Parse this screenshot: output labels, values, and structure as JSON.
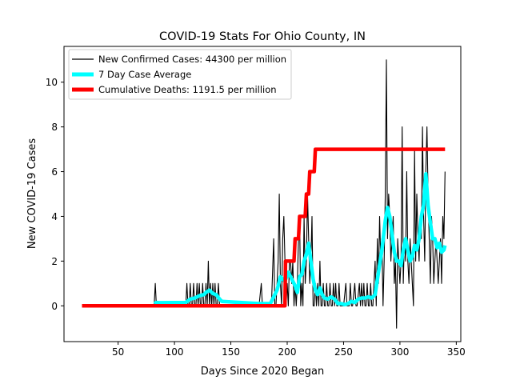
{
  "chart_data": {
    "type": "line",
    "title": "COVID-19 Stats For Ohio County, IN",
    "xlabel": "Days Since 2020 Began",
    "ylabel": "New COVID-19 Cases",
    "xlim": [
      2,
      354
    ],
    "ylim": [
      -1.6,
      11.6
    ],
    "xticks": [
      50,
      100,
      150,
      200,
      250,
      300,
      350
    ],
    "yticks": [
      0,
      2,
      4,
      6,
      8,
      10
    ],
    "grid": false,
    "legend_position": "top-left",
    "series": [
      {
        "name": "New Confirmed Cases: 44300 per million",
        "color": "#000000",
        "kind": "thin",
        "points": [
          [
            82,
            0
          ],
          [
            83,
            1
          ],
          [
            84,
            0
          ],
          [
            86,
            0
          ],
          [
            88,
            0
          ],
          [
            90,
            0
          ],
          [
            110,
            0
          ],
          [
            111,
            1
          ],
          [
            112,
            0
          ],
          [
            113,
            0
          ],
          [
            114,
            1
          ],
          [
            115,
            0
          ],
          [
            116,
            0
          ],
          [
            117,
            1
          ],
          [
            118,
            0
          ],
          [
            119,
            0
          ],
          [
            120,
            1
          ],
          [
            121,
            0
          ],
          [
            122,
            1
          ],
          [
            123,
            0
          ],
          [
            124,
            0
          ],
          [
            125,
            1
          ],
          [
            126,
            0
          ],
          [
            127,
            0
          ],
          [
            128,
            1
          ],
          [
            129,
            0
          ],
          [
            130,
            2
          ],
          [
            131,
            0
          ],
          [
            132,
            1
          ],
          [
            133,
            0
          ],
          [
            134,
            1
          ],
          [
            135,
            0
          ],
          [
            136,
            1
          ],
          [
            137,
            0
          ],
          [
            138,
            0
          ],
          [
            139,
            1
          ],
          [
            140,
            0
          ],
          [
            141,
            0
          ],
          [
            142,
            0
          ],
          [
            144,
            0
          ],
          [
            175,
            0
          ],
          [
            177,
            1
          ],
          [
            178,
            0
          ],
          [
            180,
            0
          ],
          [
            183,
            0
          ],
          [
            186,
            0
          ],
          [
            188,
            3
          ],
          [
            189,
            0
          ],
          [
            190,
            0
          ],
          [
            191,
            1
          ],
          [
            192,
            2
          ],
          [
            193,
            5
          ],
          [
            194,
            1
          ],
          [
            195,
            0
          ],
          [
            196,
            3
          ],
          [
            197,
            4
          ],
          [
            198,
            2
          ],
          [
            199,
            0
          ],
          [
            200,
            1
          ],
          [
            201,
            0
          ],
          [
            202,
            2
          ],
          [
            203,
            2
          ],
          [
            204,
            1
          ],
          [
            205,
            2
          ],
          [
            206,
            0
          ],
          [
            207,
            1
          ],
          [
            208,
            0
          ],
          [
            209,
            1
          ],
          [
            210,
            3
          ],
          [
            211,
            4
          ],
          [
            212,
            0
          ],
          [
            213,
            1
          ],
          [
            214,
            0
          ],
          [
            215,
            4
          ],
          [
            216,
            1
          ],
          [
            217,
            2
          ],
          [
            218,
            5
          ],
          [
            219,
            3
          ],
          [
            220,
            1
          ],
          [
            221,
            2
          ],
          [
            222,
            4
          ],
          [
            223,
            0
          ],
          [
            224,
            0
          ],
          [
            225,
            1
          ],
          [
            226,
            0
          ],
          [
            227,
            1
          ],
          [
            228,
            0
          ],
          [
            229,
            2
          ],
          [
            230,
            0
          ],
          [
            231,
            0
          ],
          [
            232,
            1
          ],
          [
            233,
            0
          ],
          [
            234,
            0
          ],
          [
            235,
            1
          ],
          [
            236,
            0
          ],
          [
            237,
            0
          ],
          [
            238,
            1
          ],
          [
            239,
            0
          ],
          [
            240,
            0
          ],
          [
            241,
            1
          ],
          [
            242,
            0
          ],
          [
            243,
            1
          ],
          [
            244,
            0
          ],
          [
            245,
            0
          ],
          [
            246,
            1
          ],
          [
            247,
            0
          ],
          [
            248,
            0
          ],
          [
            249,
            0
          ],
          [
            250,
            0
          ],
          [
            252,
            1
          ],
          [
            253,
            0
          ],
          [
            254,
            0
          ],
          [
            255,
            0
          ],
          [
            256,
            1
          ],
          [
            257,
            0
          ],
          [
            258,
            0
          ],
          [
            260,
            1
          ],
          [
            261,
            0
          ],
          [
            262,
            0
          ],
          [
            264,
            1
          ],
          [
            265,
            0
          ],
          [
            266,
            1
          ],
          [
            267,
            0
          ],
          [
            268,
            1
          ],
          [
            269,
            0
          ],
          [
            270,
            0
          ],
          [
            271,
            1
          ],
          [
            272,
            0
          ],
          [
            273,
            0
          ],
          [
            274,
            1
          ],
          [
            275,
            0
          ],
          [
            276,
            0
          ],
          [
            277,
            1
          ],
          [
            278,
            2
          ],
          [
            279,
            0
          ],
          [
            280,
            3
          ],
          [
            281,
            1
          ],
          [
            282,
            4
          ],
          [
            283,
            2
          ],
          [
            284,
            3
          ],
          [
            285,
            0
          ],
          [
            286,
            2
          ],
          [
            287,
            5
          ],
          [
            288,
            11
          ],
          [
            289,
            3
          ],
          [
            290,
            5
          ],
          [
            291,
            4
          ],
          [
            292,
            2
          ],
          [
            293,
            3
          ],
          [
            294,
            4
          ],
          [
            295,
            1
          ],
          [
            296,
            2
          ],
          [
            297,
            -1
          ],
          [
            298,
            3
          ],
          [
            299,
            2
          ],
          [
            300,
            1
          ],
          [
            301,
            2
          ],
          [
            302,
            8
          ],
          [
            303,
            1
          ],
          [
            304,
            3
          ],
          [
            305,
            2
          ],
          [
            306,
            6
          ],
          [
            307,
            2
          ],
          [
            308,
            1
          ],
          [
            309,
            3
          ],
          [
            310,
            2
          ],
          [
            311,
            1
          ],
          [
            312,
            0
          ],
          [
            313,
            7
          ],
          [
            314,
            2
          ],
          [
            315,
            5
          ],
          [
            316,
            3
          ],
          [
            317,
            2
          ],
          [
            318,
            4
          ],
          [
            319,
            3
          ],
          [
            320,
            8
          ],
          [
            321,
            4
          ],
          [
            322,
            2
          ],
          [
            323,
            6
          ],
          [
            324,
            8
          ],
          [
            325,
            5
          ],
          [
            326,
            3
          ],
          [
            327,
            1
          ],
          [
            328,
            4
          ],
          [
            329,
            3
          ],
          [
            330,
            1
          ],
          [
            331,
            2
          ],
          [
            332,
            3
          ],
          [
            333,
            2
          ],
          [
            334,
            1
          ],
          [
            335,
            2
          ],
          [
            336,
            3
          ],
          [
            337,
            1
          ],
          [
            338,
            4
          ],
          [
            339,
            3
          ],
          [
            340,
            6
          ]
        ]
      },
      {
        "name": "7 Day Case Average",
        "color": "#00ffff",
        "kind": "thick",
        "points": [
          [
            82,
            0.1
          ],
          [
            84,
            0.15
          ],
          [
            86,
            0.14
          ],
          [
            88,
            0.14
          ],
          [
            110,
            0.15
          ],
          [
            114,
            0.3
          ],
          [
            118,
            0.35
          ],
          [
            122,
            0.45
          ],
          [
            126,
            0.5
          ],
          [
            128,
            0.6
          ],
          [
            131,
            0.7
          ],
          [
            134,
            0.55
          ],
          [
            137,
            0.5
          ],
          [
            140,
            0.3
          ],
          [
            142,
            0.2
          ],
          [
            175,
            0.1
          ],
          [
            180,
            0.1
          ],
          [
            185,
            0.1
          ],
          [
            188,
            0.4
          ],
          [
            191,
            0.7
          ],
          [
            194,
            1.3
          ],
          [
            196,
            1.2
          ],
          [
            198,
            1.1
          ],
          [
            201,
            1.5
          ],
          [
            203,
            1.3
          ],
          [
            205,
            1.1
          ],
          [
            207,
            0.9
          ],
          [
            209,
            0.6
          ],
          [
            211,
            1.3
          ],
          [
            213,
            1.4
          ],
          [
            215,
            2.0
          ],
          [
            217,
            2.3
          ],
          [
            219,
            2.8
          ],
          [
            221,
            2.0
          ],
          [
            223,
            1.2
          ],
          [
            225,
            0.7
          ],
          [
            227,
            0.5
          ],
          [
            229,
            0.8
          ],
          [
            231,
            0.5
          ],
          [
            233,
            0.35
          ],
          [
            236,
            0.3
          ],
          [
            239,
            0.4
          ],
          [
            242,
            0.3
          ],
          [
            245,
            0.1
          ],
          [
            248,
            0.1
          ],
          [
            251,
            0.05
          ],
          [
            254,
            0.1
          ],
          [
            257,
            0.2
          ],
          [
            260,
            0.15
          ],
          [
            263,
            0.3
          ],
          [
            266,
            0.35
          ],
          [
            269,
            0.35
          ],
          [
            272,
            0.4
          ],
          [
            275,
            0.35
          ],
          [
            278,
            0.5
          ],
          [
            281,
            1.5
          ],
          [
            284,
            2.5
          ],
          [
            287,
            3.8
          ],
          [
            289,
            4.4
          ],
          [
            291,
            4.0
          ],
          [
            293,
            3.2
          ],
          [
            295,
            2.4
          ],
          [
            297,
            2.0
          ],
          [
            299,
            2.0
          ],
          [
            301,
            1.8
          ],
          [
            303,
            2.5
          ],
          [
            305,
            3.0
          ],
          [
            307,
            2.5
          ],
          [
            309,
            2.0
          ],
          [
            311,
            2.2
          ],
          [
            313,
            2.7
          ],
          [
            315,
            2.5
          ],
          [
            317,
            3.0
          ],
          [
            319,
            4.0
          ],
          [
            321,
            4.5
          ],
          [
            323,
            5.9
          ],
          [
            325,
            4.5
          ],
          [
            327,
            3.7
          ],
          [
            329,
            3.0
          ],
          [
            331,
            3.0
          ],
          [
            333,
            2.6
          ],
          [
            335,
            2.8
          ],
          [
            337,
            2.4
          ],
          [
            339,
            2.5
          ],
          [
            340,
            2.7
          ]
        ]
      },
      {
        "name": "Cumulative Deaths: 1191.5 per million",
        "color": "#ff0000",
        "kind": "thick",
        "points": [
          [
            18,
            0
          ],
          [
            196,
            0
          ],
          [
            198,
            0
          ],
          [
            198.5,
            2
          ],
          [
            206,
            2
          ],
          [
            207,
            3
          ],
          [
            210,
            3
          ],
          [
            211,
            4
          ],
          [
            216,
            4
          ],
          [
            217,
            5
          ],
          [
            219,
            5
          ],
          [
            220,
            6
          ],
          [
            224,
            6
          ],
          [
            225,
            7
          ],
          [
            340,
            7
          ]
        ]
      }
    ]
  }
}
